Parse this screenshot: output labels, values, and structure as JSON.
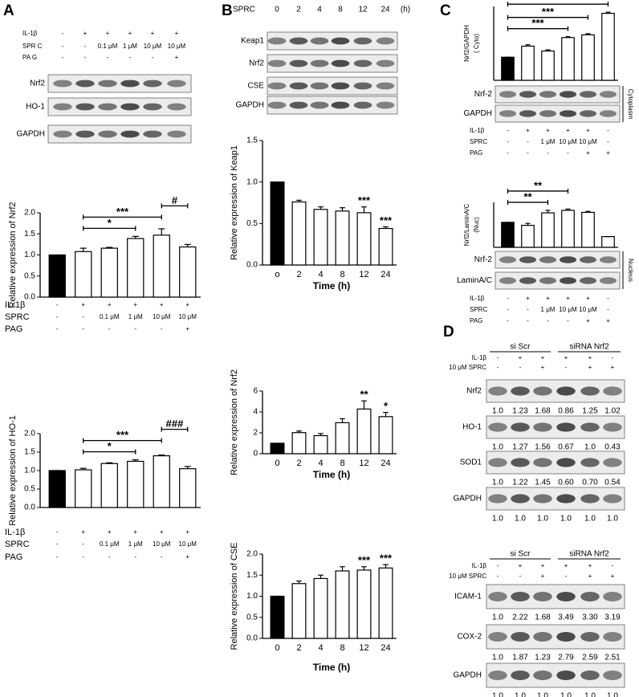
{
  "panels": [
    {
      "letter": "A",
      "header": {
        "rows": [
          {
            "label": "IL-1β",
            "entries": [
              "-",
              "+",
              "+",
              "+",
              "+",
              "+"
            ]
          },
          {
            "label": "SPR C",
            "entries": [
              "-",
              "-",
              "0.1 μM",
              "1 μM",
              "10 μM",
              "10 μM"
            ]
          },
          {
            "label": "PA G",
            "entries": [
              "-",
              "-",
              "-",
              "-",
              "-",
              "+"
            ]
          }
        ]
      },
      "blots": [
        {
          "label": "Nrf2"
        },
        {
          "label": "HO-1"
        },
        {
          "label": "GAPDH"
        }
      ]
    },
    {
      "letter": "B",
      "header": {
        "rows": [
          {
            "label": "SPRC",
            "entries": [
              "0",
              "2",
              "4",
              "8",
              "12",
              "24"
            ],
            "unit": "(h)"
          }
        ]
      },
      "blots": [
        {
          "label": "Keap1"
        },
        {
          "label": "Nrf2"
        },
        {
          "label": "CSE"
        },
        {
          "label": "GAPDH"
        }
      ]
    },
    {
      "letter": "C",
      "groups": [
        {
          "blots": [
            {
              "label": "Nrf-2"
            },
            {
              "label": "GAPDH"
            }
          ],
          "side_label": "Cytoplasm"
        },
        {
          "blots": [
            {
              "label": "Nrf-2"
            },
            {
              "label": "LaminA/C"
            }
          ],
          "side_label": "Nucleus"
        }
      ]
    },
    {
      "letter": "D",
      "groups": [
        {
          "headers": [
            "si Scr",
            "siRNA Nrf2"
          ],
          "rows": [
            {
              "label": "IL-1β",
              "entries": [
                "-",
                "+",
                "+",
                "+",
                "+",
                "-"
              ]
            },
            {
              "label": "10 μM SPRC",
              "entries": [
                "-",
                "-",
                "+",
                "-",
                "+",
                "+"
              ]
            }
          ],
          "blots": [
            {
              "label": "Nrf2",
              "quant": [
                "1.0",
                "1.23",
                "1.68",
                "0.86",
                "1.25",
                "1.02"
              ]
            },
            {
              "label": "HO-1",
              "quant": [
                "1.0",
                "1.27",
                "1.56",
                "0.67",
                "1.0",
                "0.43"
              ]
            },
            {
              "label": "SOD1",
              "quant": [
                "1.0",
                "1.22",
                "1.45",
                "0.60",
                "0.70",
                "0.54"
              ]
            },
            {
              "label": "GAPDH",
              "quant": [
                "1.0",
                "1.0",
                "1.0",
                "1.0",
                "1.0",
                "1.0"
              ]
            }
          ]
        },
        {
          "headers": [
            "si Scr",
            "siRNA Nrf2"
          ],
          "rows": [
            {
              "label": "IL-1β",
              "entries": [
                "-",
                "+",
                "+",
                "+",
                "+",
                "-"
              ]
            },
            {
              "label": "10 μM SPRC",
              "entries": [
                "-",
                "-",
                "+",
                "-",
                "+",
                "+"
              ]
            }
          ],
          "blots": [
            {
              "label": "ICAM-1",
              "quant": [
                "1.0",
                "2.22",
                "1.68",
                "3.49",
                "3.30",
                "3.19"
              ]
            },
            {
              "label": "COX-2",
              "quant": [
                "1.0",
                "1.87",
                "1.23",
                "2.79",
                "2.59",
                "2.51"
              ]
            },
            {
              "label": "GAPDH",
              "quant": [
                "1.0",
                "1.0",
                "1.0",
                "1.0",
                "1.0",
                "1.0"
              ]
            }
          ]
        }
      ]
    }
  ],
  "chart_data": [
    {
      "type": "bar",
      "ylabel": "Relative expression of Nrf2",
      "conditions": [
        {
          "label": "IL-1β",
          "entries": [
            "-",
            "+",
            "+",
            "+",
            "+",
            "+"
          ]
        },
        {
          "label": "SPRC",
          "entries": [
            "-",
            "-",
            "0.1 μM",
            "1 μM",
            "10 μM",
            "10 μM"
          ]
        },
        {
          "label": "PAG",
          "entries": [
            "-",
            "-",
            "-",
            "-",
            "-",
            "+"
          ]
        }
      ],
      "values": [
        1.0,
        1.08,
        1.16,
        1.39,
        1.47,
        1.19
      ],
      "errors": [
        0,
        0.08,
        0.02,
        0.05,
        0.15,
        0.06
      ],
      "bar_colors": [
        "#000000",
        "#ffffff",
        "#ffffff",
        "#ffffff",
        "#ffffff",
        "#ffffff"
      ],
      "ylim": [
        0,
        2
      ],
      "yticks": [
        {
          "value": 0,
          "label": "0.0"
        },
        0.5,
        {
          "value": 1,
          "label": "1.0"
        },
        1.5,
        {
          "value": 2,
          "label": "2.0"
        }
      ],
      "brackets": [
        {
          "text": "*",
          "from": 1,
          "to": 3
        },
        {
          "text": "***",
          "from": 1,
          "to": 4
        },
        {
          "text": "#",
          "from": 4,
          "to": 5
        }
      ]
    },
    {
      "type": "bar",
      "ylabel": "Relative expression of HO-1",
      "conditions": [
        {
          "label": "IL-1β",
          "entries": [
            "-",
            "+",
            "+",
            "+",
            "+",
            "+"
          ]
        },
        {
          "label": "SPRC",
          "entries": [
            "-",
            "-",
            "0.1 μM",
            "1 μM",
            "10 μM",
            "10 μM"
          ]
        },
        {
          "label": "PAG",
          "entries": [
            "-",
            "-",
            "-",
            "-",
            "-",
            "+"
          ]
        }
      ],
      "values": [
        1.0,
        1.02,
        1.19,
        1.25,
        1.4,
        1.05
      ],
      "errors": [
        0,
        0.04,
        0.02,
        0.04,
        0.02,
        0.06
      ],
      "bar_colors": [
        "#000000",
        "#ffffff",
        "#ffffff",
        "#ffffff",
        "#ffffff",
        "#ffffff"
      ],
      "ylim": [
        0,
        2
      ],
      "yticks": [
        {
          "value": 0,
          "label": "0.0"
        },
        0.5,
        {
          "value": 1,
          "label": "1.0"
        },
        1.5,
        {
          "value": 2,
          "label": "2.0"
        }
      ],
      "brackets": [
        {
          "text": "*",
          "from": 1,
          "to": 3
        },
        {
          "text": "***",
          "from": 1,
          "to": 4
        },
        {
          "text": "###",
          "from": 4,
          "to": 5
        }
      ]
    },
    {
      "type": "bar",
      "ylabel": "Relative expression of Keap1",
      "xlabel": "Time (h)",
      "categories": [
        "o",
        "2",
        "4",
        "8",
        "12",
        "24"
      ],
      "values": [
        1.0,
        0.76,
        0.67,
        0.65,
        0.63,
        0.44
      ],
      "errors": [
        0,
        0.02,
        0.03,
        0.04,
        0.07,
        0.02
      ],
      "bar_labels": [
        null,
        null,
        null,
        null,
        "***",
        "***"
      ],
      "bar_colors": [
        "#000000",
        "#ffffff",
        "#ffffff",
        "#ffffff",
        "#ffffff",
        "#ffffff"
      ],
      "ylim": [
        0,
        1.5
      ],
      "yticks": [
        {
          "value": 0,
          "label": "0.0"
        },
        0.5,
        {
          "value": 1,
          "label": "1.0"
        },
        1.5
      ]
    },
    {
      "type": "bar",
      "ylabel": "Relative expression of Nrf2",
      "xlabel": "Time (h)",
      "categories": [
        "0",
        "2",
        "4",
        "8",
        "12",
        "24"
      ],
      "values": [
        1.0,
        2.02,
        1.73,
        2.97,
        4.28,
        3.55
      ],
      "errors": [
        0,
        0.15,
        0.2,
        0.38,
        0.78,
        0.4
      ],
      "bar_labels": [
        null,
        null,
        null,
        null,
        "**",
        "*"
      ],
      "bar_colors": [
        "#000000",
        "#ffffff",
        "#ffffff",
        "#ffffff",
        "#ffffff",
        "#ffffff"
      ],
      "ylim": [
        0,
        6
      ],
      "yticks": [
        0,
        2,
        4,
        6
      ]
    },
    {
      "type": "bar",
      "ylabel": "Relative expression of CSE",
      "xlabel": "Time (h)",
      "categories": [
        "0",
        "2",
        "4",
        "8",
        "12",
        "24"
      ],
      "values": [
        1.0,
        1.3,
        1.42,
        1.6,
        1.62,
        1.67
      ],
      "errors": [
        0,
        0.06,
        0.08,
        0.1,
        0.08,
        0.08
      ],
      "bar_labels": [
        null,
        null,
        null,
        null,
        "***",
        "***"
      ],
      "bar_colors": [
        "#000000",
        "#ffffff",
        "#ffffff",
        "#ffffff",
        "#ffffff",
        "#ffffff"
      ],
      "ylim": [
        0,
        2
      ],
      "yticks": [
        {
          "value": 0,
          "label": "0.0"
        },
        0.5,
        {
          "value": 1,
          "label": "1.0"
        },
        1.5,
        {
          "value": 2,
          "label": "2.0"
        }
      ]
    },
    {
      "type": "bar",
      "ylabel": [
        "Nrf2/GAPDH",
        "( Cyto)"
      ],
      "conditions": [
        {
          "label": "IL-1β",
          "entries": [
            "-",
            "+",
            "+",
            "+",
            "+",
            "-"
          ]
        },
        {
          "label": "SPRC",
          "entries": [
            "-",
            "-",
            "1 μM",
            "10 μM",
            "10 μM",
            "-"
          ]
        },
        {
          "label": "PAG",
          "entries": [
            "-",
            "-",
            "-",
            "-",
            "+",
            "+"
          ]
        }
      ],
      "values": [
        1.0,
        1.48,
        1.27,
        1.85,
        1.97,
        2.9
      ],
      "errors": [
        0,
        0.06,
        0.05,
        0.04,
        0.05,
        0.05
      ],
      "bar_colors": [
        "#000000",
        "#ffffff",
        "#ffffff",
        "#ffffff",
        "#ffffff",
        "#ffffff"
      ],
      "ylim": [
        0,
        3.2
      ],
      "brackets": [
        {
          "text": "***",
          "from": 0,
          "to": 3
        },
        {
          "text": "***",
          "from": 0,
          "to": 4
        },
        {
          "text": "***",
          "from": 0,
          "to": 5
        }
      ]
    },
    {
      "type": "bar",
      "ylabel": [
        "Nrf2/LaminA/C",
        "(Nuc)"
      ],
      "conditions": [
        {
          "label": "IL-1β",
          "entries": [
            "-",
            "+",
            "+",
            "+",
            "+",
            "-"
          ]
        },
        {
          "label": "SPRC",
          "entries": [
            "-",
            "-",
            "1 μM",
            "10 μM",
            "10 μM",
            "-"
          ]
        },
        {
          "label": "PAG",
          "entries": [
            "-",
            "-",
            "-",
            "-",
            "+",
            "+"
          ]
        }
      ],
      "values": [
        1.0,
        0.88,
        1.38,
        1.48,
        1.4,
        0.43
      ],
      "errors": [
        0,
        0.08,
        0.1,
        0.05,
        0.04,
        0
      ],
      "bar_colors": [
        "#000000",
        "#ffffff",
        "#ffffff",
        "#ffffff",
        "#ffffff",
        "#ffffff"
      ],
      "ylim": [
        0,
        1.8
      ],
      "brackets": [
        {
          "text": "**",
          "from": 0,
          "to": 2
        },
        {
          "text": "**",
          "from": 0,
          "to": 3
        }
      ]
    }
  ]
}
